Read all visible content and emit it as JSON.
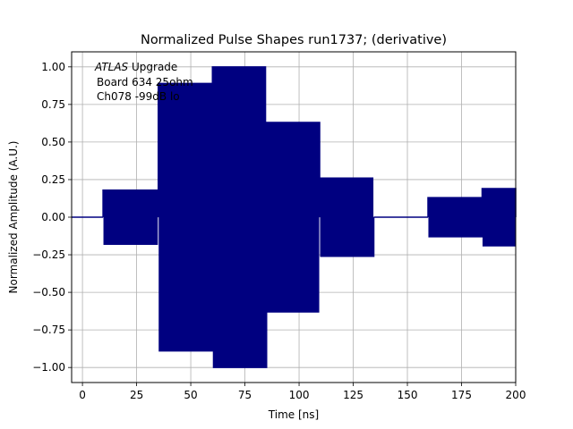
{
  "chart_data": {
    "type": "line",
    "title": "Normalized Pulse Shapes run1737; (derivative)",
    "xlabel": "Time [ns]",
    "ylabel": "Normalized Amplitude (A.U.)",
    "xlim": [
      -5,
      200
    ],
    "ylim": [
      -1.1,
      1.1
    ],
    "xticks": [
      0,
      25,
      50,
      75,
      100,
      125,
      150,
      175,
      200
    ],
    "yticks": [
      -1.0,
      -0.75,
      -0.5,
      -0.25,
      0.0,
      0.25,
      0.5,
      0.75,
      1.0
    ],
    "xtick_labels": [
      "0",
      "25",
      "50",
      "75",
      "100",
      "125",
      "150",
      "175",
      "200"
    ],
    "ytick_labels": [
      "−1.00",
      "−0.75",
      "−0.50",
      "−0.25",
      "0.00",
      "0.25",
      "0.50",
      "0.75",
      "1.00"
    ],
    "grid": true,
    "line_color": "#000080",
    "annotation": {
      "lines": [
        "ATLAS Upgrade",
        "Board 634 25ohm",
        "Ch078 -99dB lo"
      ],
      "italic_prefix": "ATLAS"
    },
    "series": [
      {
        "style": "oscillation",
        "oscillation_period_ns": 1.0,
        "segments": [
          {
            "x_start": -5,
            "x_end": 9.5,
            "amplitude": 0.0
          },
          {
            "x_start": 9.5,
            "x_end": 35,
            "amplitude": 0.18
          },
          {
            "x_start": 35,
            "x_end": 60,
            "amplitude": 0.89
          },
          {
            "x_start": 60,
            "x_end": 85,
            "amplitude": 1.0
          },
          {
            "x_start": 85,
            "x_end": 109.5,
            "amplitude": 0.63
          },
          {
            "x_start": 109.5,
            "x_end": 134.5,
            "amplitude": 0.26
          },
          {
            "x_start": 134.5,
            "x_end": 159.5,
            "amplitude": 0.0
          },
          {
            "x_start": 159.5,
            "x_end": 184.5,
            "amplitude": 0.13
          },
          {
            "x_start": 184.5,
            "x_end": 200,
            "amplitude": 0.19
          }
        ]
      }
    ]
  }
}
